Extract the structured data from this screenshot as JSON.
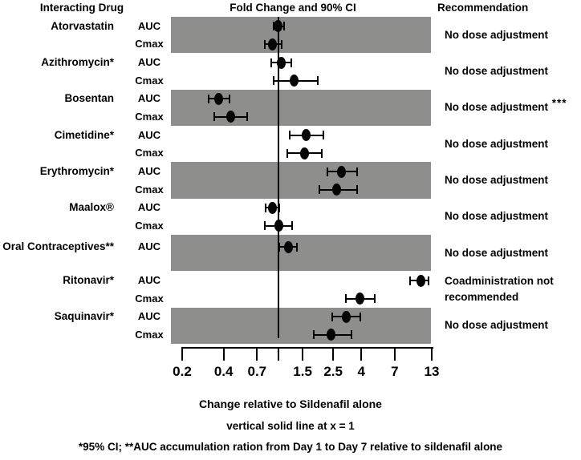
{
  "figure": {
    "columns": {
      "drug": "Interacting Drug",
      "plot": "Fold Change and 90% CI",
      "recommendation": "Recommendation"
    },
    "captions": {
      "xlabel": "Change relative to Sildenafil alone",
      "note_line": "vertical solid line at x = 1",
      "footnote": "*95% CI; **AUC accumulation ration from Day 1 to Day 7 relative to sildenafil alone"
    }
  },
  "colors": {
    "band_gray": "#8e8e8c",
    "band_white": "#ffffff",
    "marker_black": "#050505"
  },
  "chart_data": {
    "type": "scatter",
    "subtype": "forest-plot",
    "title": "Fold Change and 90% CI",
    "xlabel": "Change relative to Sildenafil alone",
    "x_scale": "log",
    "xlim": [
      0.2,
      13
    ],
    "reference_line_x": 1,
    "grid": false,
    "axis_ticks": [
      {
        "value": 0.2,
        "label": "0.2"
      },
      {
        "value": 0.4,
        "label": "0.4"
      },
      {
        "value": 0.7,
        "label": "0.7"
      },
      {
        "value": 1.0,
        "label": ""
      },
      {
        "value": 1.5,
        "label": "1.5"
      },
      {
        "value": 2.5,
        "label": "2.5"
      },
      {
        "value": 4,
        "label": "4"
      },
      {
        "value": 7,
        "label": "7"
      },
      {
        "value": 13,
        "label": "13"
      }
    ],
    "drugs": [
      {
        "name": "Atorvastatin",
        "band": "gray",
        "recommendation": [
          "No dose adjustment"
        ],
        "rec_suffix": "",
        "rows": [
          {
            "metric": "AUC",
            "value": 1.0,
            "ci_low": 0.93,
            "ci_high": 1.1
          },
          {
            "metric": "Cmax",
            "value": 0.9,
            "ci_low": 0.8,
            "ci_high": 1.06
          }
        ]
      },
      {
        "name": "Azithromycin*",
        "band": "white",
        "recommendation": [
          "No dose adjustment"
        ],
        "rec_suffix": "",
        "rows": [
          {
            "metric": "AUC",
            "value": 1.05,
            "ci_low": 0.89,
            "ci_high": 1.24
          },
          {
            "metric": "Cmax",
            "value": 1.3,
            "ci_low": 0.92,
            "ci_high": 1.92
          }
        ]
      },
      {
        "name": "Bosentan",
        "band": "gray",
        "recommendation": [
          "No dose adjustment"
        ],
        "rec_suffix": "***",
        "rows": [
          {
            "metric": "AUC",
            "value": 0.37,
            "ci_low": 0.31,
            "ci_high": 0.44
          },
          {
            "metric": "Cmax",
            "value": 0.45,
            "ci_low": 0.34,
            "ci_high": 0.59
          }
        ]
      },
      {
        "name": "Cimetidine*",
        "band": "white",
        "recommendation": [
          "No dose adjustment"
        ],
        "rec_suffix": "",
        "rows": [
          {
            "metric": "AUC",
            "value": 1.59,
            "ci_low": 1.21,
            "ci_high": 2.12
          },
          {
            "metric": "Cmax",
            "value": 1.55,
            "ci_low": 1.16,
            "ci_high": 2.08
          }
        ]
      },
      {
        "name": "Erythromycin*",
        "band": "gray",
        "recommendation": [
          "No dose adjustment"
        ],
        "rec_suffix": "",
        "rows": [
          {
            "metric": "AUC",
            "value": 2.87,
            "ci_low": 2.26,
            "ci_high": 3.75
          },
          {
            "metric": "Cmax",
            "value": 2.65,
            "ci_low": 1.98,
            "ci_high": 3.73
          }
        ]
      },
      {
        "name": "Maalox®",
        "band": "white",
        "recommendation": [
          "No dose adjustment"
        ],
        "rec_suffix": "",
        "rows": [
          {
            "metric": "AUC",
            "value": 0.91,
            "ci_low": 0.81,
            "ci_high": 1.02
          },
          {
            "metric": "Cmax",
            "value": 1.01,
            "ci_low": 0.8,
            "ci_high": 1.25
          }
        ]
      },
      {
        "name": "Oral Contraceptives**",
        "band": "gray",
        "recommendation": [
          "No dose adjustment"
        ],
        "rec_suffix": "",
        "rows": [
          {
            "metric": "AUC",
            "value": 1.19,
            "ci_low": 1.01,
            "ci_high": 1.37
          }
        ]
      },
      {
        "name": "Ritonavir*",
        "band": "white",
        "recommendation": [
          "Coadministration not",
          "recommended"
        ],
        "rec_suffix": "",
        "rows": [
          {
            "metric": "AUC",
            "value": 10.8,
            "ci_low": 9.1,
            "ci_high": 12.3
          },
          {
            "metric": "Cmax",
            "value": 3.9,
            "ci_low": 3.1,
            "ci_high": 5.0
          }
        ]
      },
      {
        "name": "Saquinavir*",
        "band": "gray",
        "recommendation": [
          "No dose adjustment"
        ],
        "rec_suffix": "",
        "rows": [
          {
            "metric": "AUC",
            "value": 3.1,
            "ci_low": 2.45,
            "ci_high": 3.95
          },
          {
            "metric": "Cmax",
            "value": 2.4,
            "ci_low": 1.8,
            "ci_high": 3.4
          }
        ]
      }
    ]
  }
}
